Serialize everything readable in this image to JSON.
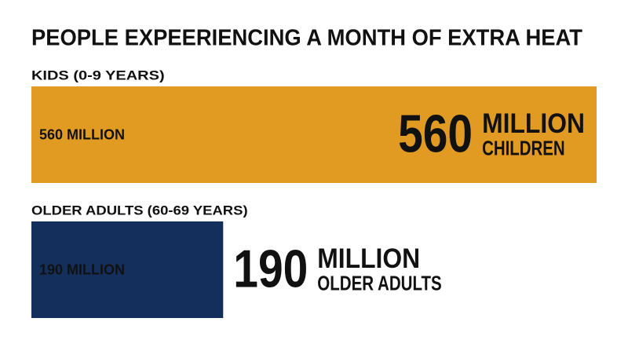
{
  "chart_data": {
    "type": "bar",
    "orientation": "horizontal",
    "title": "PEOPLE EXPEERIENCING A MONTH OF EXTRA HEAT",
    "categories": [
      "KIDS (0-9 YEARS)",
      "OLDER ADULTS (60-69 YEARS)"
    ],
    "values": [
      560,
      190
    ],
    "value_labels": [
      "560 MILLION",
      "190 MILLION"
    ],
    "colors": [
      "#e29b22",
      "#142f5b"
    ],
    "label_colors": [
      "#111111",
      "#ffffff"
    ],
    "callouts": [
      {
        "number": "560",
        "unit": "MILLION",
        "noun": "CHILDREN"
      },
      {
        "number": "190",
        "unit": "MILLION",
        "noun": "OLDER ADULTS"
      }
    ]
  }
}
